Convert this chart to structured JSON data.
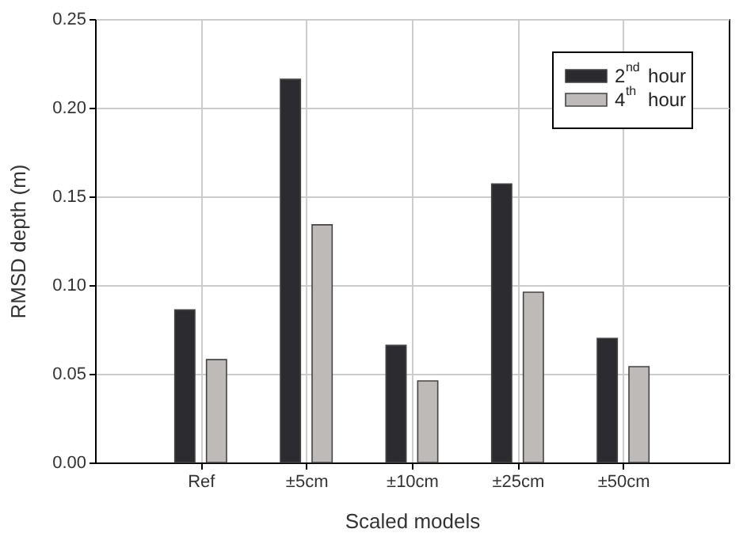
{
  "chart_data": {
    "type": "bar",
    "xlabel": "Scaled models",
    "ylabel": "RMSD depth (m)",
    "categories": [
      "Ref",
      "±5cm",
      "±10cm",
      "±25cm",
      "±50cm"
    ],
    "series": [
      {
        "name": "2$^{nd}$ hour",
        "color": "#2b2b30",
        "values": [
          0.086,
          0.216,
          0.066,
          0.157,
          0.07
        ]
      },
      {
        "name": "4$^{th}$ hour",
        "color": "#bdbab7",
        "values": [
          0.058,
          0.134,
          0.046,
          0.096,
          0.054
        ]
      }
    ],
    "ylim": [
      0,
      0.25
    ],
    "yticks": [
      {
        "value": 0,
        "label": "0.00"
      },
      0.05,
      {
        "value": 0.1,
        "label": "0.10"
      },
      0.15,
      {
        "value": 0.2,
        "label": "0.20"
      },
      0.25
    ],
    "grid": true,
    "legend": "top right"
  }
}
